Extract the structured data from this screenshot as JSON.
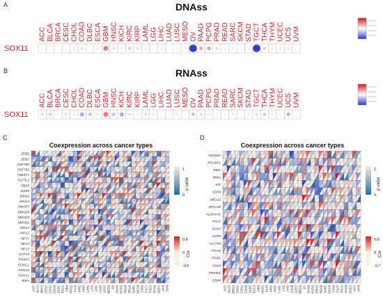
{
  "panels": {
    "A": {
      "letter": "A",
      "title": "DNAss",
      "row_label": "SOX11"
    },
    "B": {
      "letter": "B",
      "title": "RNAss",
      "row_label": "SOX11"
    },
    "C": {
      "letter": "C",
      "title": "Coexpression across cancer types",
      "legend_p_label": "p value",
      "legend_p_ticks": [
        "1",
        "0"
      ],
      "legend_cor_label": "Cor",
      "legend_cor_ticks": [
        "0.8",
        "0",
        "-0.5"
      ]
    },
    "D": {
      "letter": "D",
      "title": "Coexpression across cancer types",
      "legend_p_label": "p value",
      "legend_p_ticks": [
        "1",
        "0"
      ],
      "legend_cor_label": "Cor",
      "legend_cor_ticks": [
        "0.8",
        "0",
        "-0.7"
      ]
    }
  },
  "colors": {
    "positive": "#d7191c",
    "negative": "#2c3fd1",
    "label_red": "#d21e23",
    "p_blue": "#2b6ba8"
  },
  "cancer_types": [
    "ACC",
    "BLCA",
    "BRCA",
    "CESC",
    "CHOL",
    "COAD",
    "DLBC",
    "ESCA",
    "GBM",
    "HNSC",
    "KICH",
    "KIRC",
    "KIRP",
    "LAML",
    "LGG",
    "LIHC",
    "LUAD",
    "LUSC",
    "MESO",
    "OV",
    "PAAD",
    "PCPG",
    "PRAD",
    "READ",
    "SARC",
    "SKCM",
    "STAD",
    "TGCT",
    "THCA",
    "THYM",
    "UCEC",
    "UCS",
    "UVM"
  ],
  "chart_data": [
    {
      "type": "heatmap",
      "title": "DNAss",
      "rows": [
        "SOX11"
      ],
      "values_note": "bubble correlation, sign via color",
      "values": [
        -0.05,
        -0.05,
        0.05,
        -0.05,
        -0.1,
        -0.15,
        0.05,
        0.1,
        0.45,
        0.15,
        0.1,
        0.2,
        0.15,
        0.1,
        0.05,
        0.1,
        0.05,
        -0.1,
        0.05,
        -0.8,
        0.3,
        -0.3,
        0.15,
        0.1,
        0.1,
        -0.05,
        0.1,
        -0.8,
        0.2,
        0.1,
        0.1,
        -0.1,
        -0.05
      ]
    },
    {
      "type": "heatmap",
      "title": "RNAss",
      "rows": [
        "SOX11"
      ],
      "values": [
        -0.15,
        0.2,
        -0.05,
        0.15,
        0.1,
        -0.35,
        -0.25,
        0.1,
        0.45,
        -0.25,
        -0.35,
        0.15,
        0.1,
        -0.15,
        0.1,
        0.05,
        -0.05,
        -0.1,
        0.05,
        -0.25,
        0.15,
        0.1,
        0.05,
        0.05,
        -0.1,
        -0.05,
        -0.1,
        -0.15,
        -0.2,
        0.1,
        0.05,
        -0.3,
        -0.05
      ]
    },
    {
      "type": "heatmap",
      "title": "Coexpression across cancer types",
      "rows": [
        "ZEB2",
        "ZEB1",
        "ZNF750",
        "ZNF703",
        "TWIST1",
        "TCF7L2",
        "TBX5",
        "SOX9",
        "SNAI2",
        "SNAI3",
        "SMAD7",
        "SMAD4",
        "SMAD3",
        "SMAD2",
        "MSX1",
        "HIF1A",
        "HEYL",
        "HEY2",
        "HEY1",
        "GATA3",
        "FOXF2",
        "FOXC1",
        "FOXA2",
        "FOXA1",
        "IKKA"
      ],
      "columns_from": "cancer_types",
      "cor_range": [
        -0.5,
        0.8
      ],
      "p_range": [
        0,
        1
      ]
    },
    {
      "type": "heatmap",
      "title": "Coexpression across cancer types",
      "rows": [
        "NANOG",
        "POU5F1",
        "ENG",
        "BMI1",
        "KIT",
        "CD34",
        "ABCG2",
        "EPCAM",
        "ALDH1A1",
        "THY1",
        "SOX2",
        "LGR5",
        "ALCAM",
        "ITGA6",
        "ITGB1",
        "CD24",
        "PROM1",
        "CD44"
      ],
      "columns_from": "cancer_types",
      "cor_range": [
        -0.7,
        0.8
      ],
      "p_range": [
        0,
        1
      ]
    }
  ]
}
